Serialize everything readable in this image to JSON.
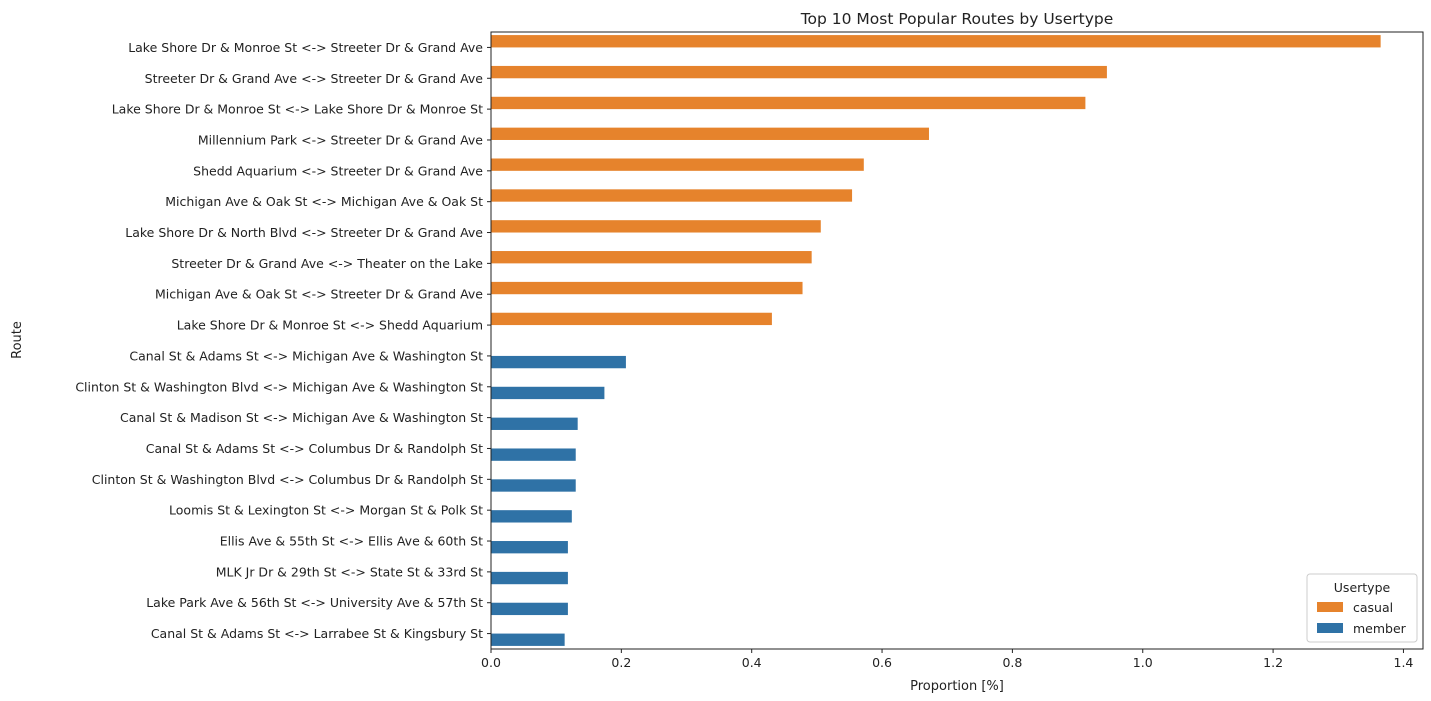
{
  "chart_data": {
    "type": "bar",
    "orientation": "horizontal",
    "title": "Top 10 Most Popular Routes by Usertype",
    "xlabel": "Proportion [%]",
    "ylabel": "Route",
    "xlim": [
      0,
      1.43
    ],
    "xticks": [
      "0.0",
      "0.2",
      "0.4",
      "0.6",
      "0.8",
      "1.0",
      "1.2",
      "1.4"
    ],
    "grid": false,
    "legend": {
      "title": "Usertype",
      "placement": "bottom-right"
    },
    "categories": [
      "Lake Shore Dr & Monroe St <-> Streeter Dr & Grand Ave",
      "Streeter Dr & Grand Ave <-> Streeter Dr & Grand Ave",
      "Lake Shore Dr & Monroe St <-> Lake Shore Dr & Monroe St",
      "Millennium Park <-> Streeter Dr & Grand Ave",
      "Shedd Aquarium <-> Streeter Dr & Grand Ave",
      "Michigan Ave & Oak St <-> Michigan Ave & Oak St",
      "Lake Shore Dr & North Blvd <-> Streeter Dr & Grand Ave",
      "Streeter Dr & Grand Ave <-> Theater on the Lake",
      "Michigan Ave & Oak St <-> Streeter Dr & Grand Ave",
      "Lake Shore Dr & Monroe St <-> Shedd Aquarium",
      "Canal St & Adams St <-> Michigan Ave & Washington St",
      "Clinton St & Washington Blvd <-> Michigan Ave & Washington St",
      "Canal St & Madison St <-> Michigan Ave & Washington St",
      "Canal St & Adams St <-> Columbus Dr & Randolph St",
      "Clinton St & Washington Blvd <-> Columbus Dr & Randolph St",
      "Loomis St & Lexington St <-> Morgan St & Polk St",
      "Ellis Ave & 55th St <-> Ellis Ave & 60th St",
      "MLK Jr Dr & 29th St <-> State St & 33rd St",
      "Lake Park Ave & 56th St <-> University Ave & 57th St",
      "Canal St & Adams St <-> Larrabee St & Kingsbury St"
    ],
    "series": [
      {
        "name": "casual",
        "color": "#e6832c",
        "values": [
          1.365,
          0.945,
          0.912,
          0.672,
          0.572,
          0.554,
          0.506,
          0.492,
          0.478,
          0.431,
          null,
          null,
          null,
          null,
          null,
          null,
          null,
          null,
          null,
          null
        ]
      },
      {
        "name": "member",
        "color": "#2f72a6",
        "values": [
          null,
          null,
          null,
          null,
          null,
          null,
          null,
          null,
          null,
          null,
          0.207,
          0.174,
          0.133,
          0.13,
          0.13,
          0.124,
          0.118,
          0.118,
          0.118,
          0.113
        ]
      }
    ]
  }
}
